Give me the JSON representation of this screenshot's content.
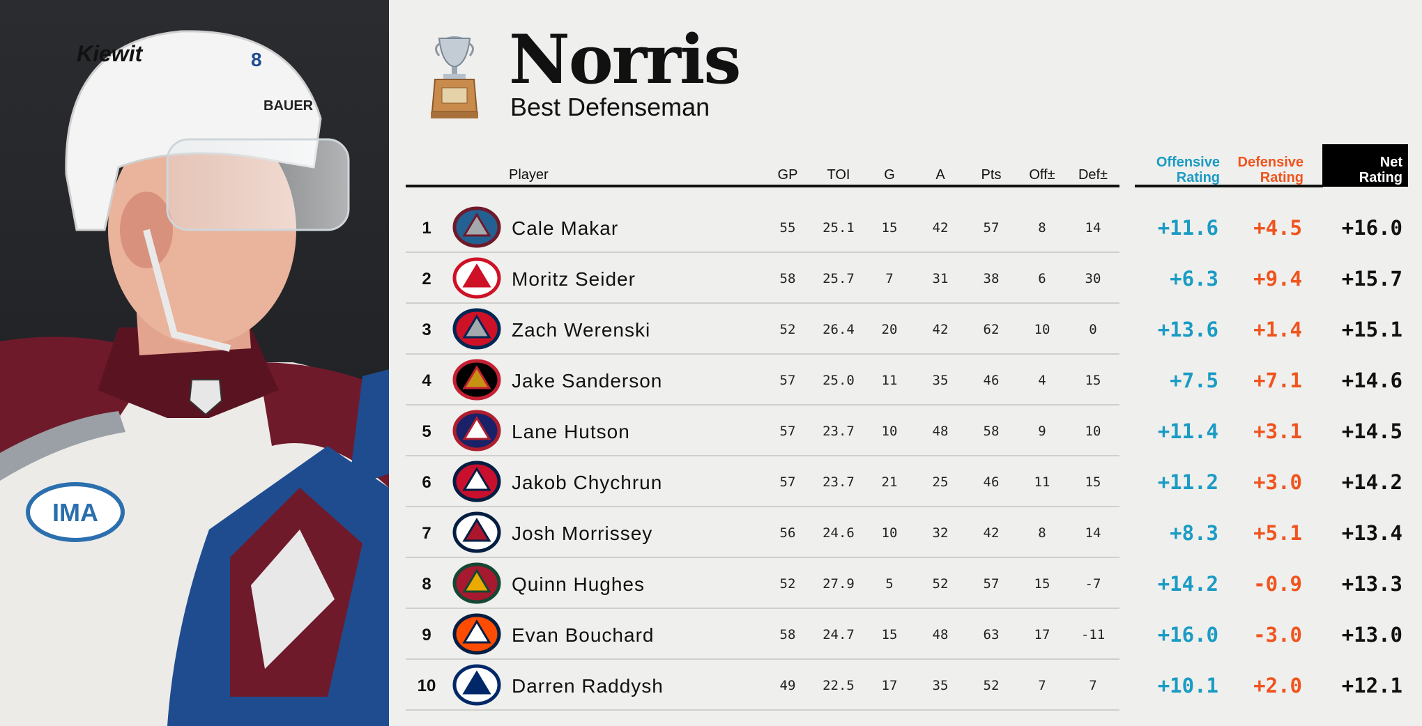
{
  "award": {
    "name": "Norris",
    "subtitle": "Best Defenseman"
  },
  "photo": {
    "helmet_text": "Kiewit",
    "helmet_brand": "BAUER",
    "number": "8",
    "patch": "IMA"
  },
  "columns": {
    "player": "Player",
    "gp": "GP",
    "toi": "TOI",
    "g": "G",
    "a": "A",
    "pts": "Pts",
    "off": "Off±",
    "def": "Def±",
    "offensive_rating": [
      "Offensive",
      "Rating"
    ],
    "defensive_rating": [
      "Defensive",
      "Rating"
    ],
    "net_rating": [
      "Net",
      "Rating"
    ]
  },
  "colors": {
    "offensive": "#1a9bc4",
    "defensive": "#f0541e",
    "net": "#111111"
  },
  "rows": [
    {
      "rank": "1",
      "team_logo": "avalanche-logo",
      "player": "Cale Makar",
      "gp": "55",
      "toi": "25.1",
      "g": "15",
      "a": "42",
      "pts": "57",
      "off": "8",
      "def": "14",
      "offr": "+11.6",
      "defr": "+4.5",
      "net": "+16.0"
    },
    {
      "rank": "2",
      "team_logo": "red-wings-logo",
      "player": "Moritz Seider",
      "gp": "58",
      "toi": "25.7",
      "g": "7",
      "a": "31",
      "pts": "38",
      "off": "6",
      "def": "30",
      "offr": "+6.3",
      "defr": "+9.4",
      "net": "+15.7"
    },
    {
      "rank": "3",
      "team_logo": "blue-jackets-logo",
      "player": "Zach Werenski",
      "gp": "52",
      "toi": "26.4",
      "g": "20",
      "a": "42",
      "pts": "62",
      "off": "10",
      "def": "0",
      "offr": "+13.6",
      "defr": "+1.4",
      "net": "+15.1"
    },
    {
      "rank": "4",
      "team_logo": "senators-logo",
      "player": "Jake Sanderson",
      "gp": "57",
      "toi": "25.0",
      "g": "11",
      "a": "35",
      "pts": "46",
      "off": "4",
      "def": "15",
      "offr": "+7.5",
      "defr": "+7.1",
      "net": "+14.6"
    },
    {
      "rank": "5",
      "team_logo": "canadiens-logo",
      "player": "Lane Hutson",
      "gp": "57",
      "toi": "23.7",
      "g": "10",
      "a": "48",
      "pts": "58",
      "off": "9",
      "def": "10",
      "offr": "+11.4",
      "defr": "+3.1",
      "net": "+14.5"
    },
    {
      "rank": "6",
      "team_logo": "capitals-logo",
      "player": "Jakob Chychrun",
      "gp": "57",
      "toi": "23.7",
      "g": "21",
      "a": "25",
      "pts": "46",
      "off": "11",
      "def": "15",
      "offr": "+11.2",
      "defr": "+3.0",
      "net": "+14.2"
    },
    {
      "rank": "7",
      "team_logo": "jets-logo",
      "player": "Josh Morrissey",
      "gp": "56",
      "toi": "24.6",
      "g": "10",
      "a": "32",
      "pts": "42",
      "off": "8",
      "def": "14",
      "offr": "+8.3",
      "defr": "+5.1",
      "net": "+13.4"
    },
    {
      "rank": "8",
      "team_logo": "wild-logo",
      "player": "Quinn Hughes",
      "gp": "52",
      "toi": "27.9",
      "g": "5",
      "a": "52",
      "pts": "57",
      "off": "15",
      "def": "-7",
      "offr": "+14.2",
      "defr": "-0.9",
      "net": "+13.3"
    },
    {
      "rank": "9",
      "team_logo": "oilers-logo",
      "player": "Evan Bouchard",
      "gp": "58",
      "toi": "24.7",
      "g": "15",
      "a": "48",
      "pts": "63",
      "off": "17",
      "def": "-11",
      "offr": "+16.0",
      "defr": "-3.0",
      "net": "+13.0"
    },
    {
      "rank": "10",
      "team_logo": "lightning-logo",
      "player": "Darren Raddysh",
      "gp": "49",
      "toi": "22.5",
      "g": "17",
      "a": "35",
      "pts": "52",
      "off": "7",
      "def": "7",
      "offr": "+10.1",
      "defr": "+2.0",
      "net": "+12.1"
    }
  ]
}
